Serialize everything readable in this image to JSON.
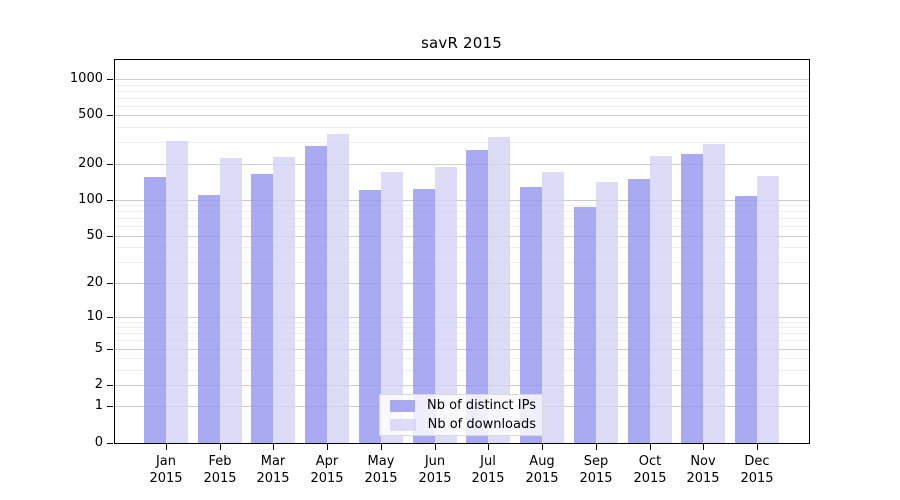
{
  "chart_data": {
    "type": "bar",
    "title": "savR 2015",
    "categories": [
      {
        "month": "Jan",
        "year": "2015"
      },
      {
        "month": "Feb",
        "year": "2015"
      },
      {
        "month": "Mar",
        "year": "2015"
      },
      {
        "month": "Apr",
        "year": "2015"
      },
      {
        "month": "May",
        "year": "2015"
      },
      {
        "month": "Jun",
        "year": "2015"
      },
      {
        "month": "Jul",
        "year": "2015"
      },
      {
        "month": "Aug",
        "year": "2015"
      },
      {
        "month": "Sep",
        "year": "2015"
      },
      {
        "month": "Oct",
        "year": "2015"
      },
      {
        "month": "Nov",
        "year": "2015"
      },
      {
        "month": "Dec",
        "year": "2015"
      }
    ],
    "series": [
      {
        "name": "Nb of distinct IPs",
        "color": "rgba(149,149,239,0.8)",
        "values": [
          155,
          110,
          165,
          280,
          121,
          123,
          259,
          128,
          88,
          149,
          240,
          108
        ]
      },
      {
        "name": "Nb of downloads",
        "color": "rgba(211,211,245,0.8)",
        "values": [
          308,
          222,
          228,
          352,
          170,
          187,
          330,
          170,
          141,
          231,
          290,
          158
        ]
      }
    ],
    "y_axis": {
      "scale": "log1p",
      "tick_values": [
        0,
        1,
        2,
        5,
        10,
        20,
        50,
        100,
        200,
        500,
        1000
      ],
      "tick_labels": [
        "0",
        "1",
        "2",
        "5",
        "10",
        "20",
        "50",
        "100",
        "200",
        "500",
        "1000"
      ],
      "minor_gridline_values": [
        3,
        4,
        6,
        7,
        8,
        9,
        30,
        40,
        60,
        70,
        80,
        90,
        300,
        400,
        600,
        700,
        800,
        900
      ],
      "ylim": [
        0,
        1000
      ]
    },
    "legend": {
      "position": "inside-bottom-center",
      "entries": [
        "Nb of distinct IPs",
        "Nb of downloads"
      ]
    },
    "grid": true,
    "colors": {
      "ips_bar": "rgba(149,149,239,0.8)",
      "downloads_bar": "rgba(211,211,245,0.8)",
      "major_grid": "#cccccc",
      "minor_grid": "#efefef",
      "axis": "#000000",
      "background": "#ffffff",
      "legend_background": "rgba(255,255,255,0.8)",
      "legend_border": "#d9d9d9"
    }
  }
}
